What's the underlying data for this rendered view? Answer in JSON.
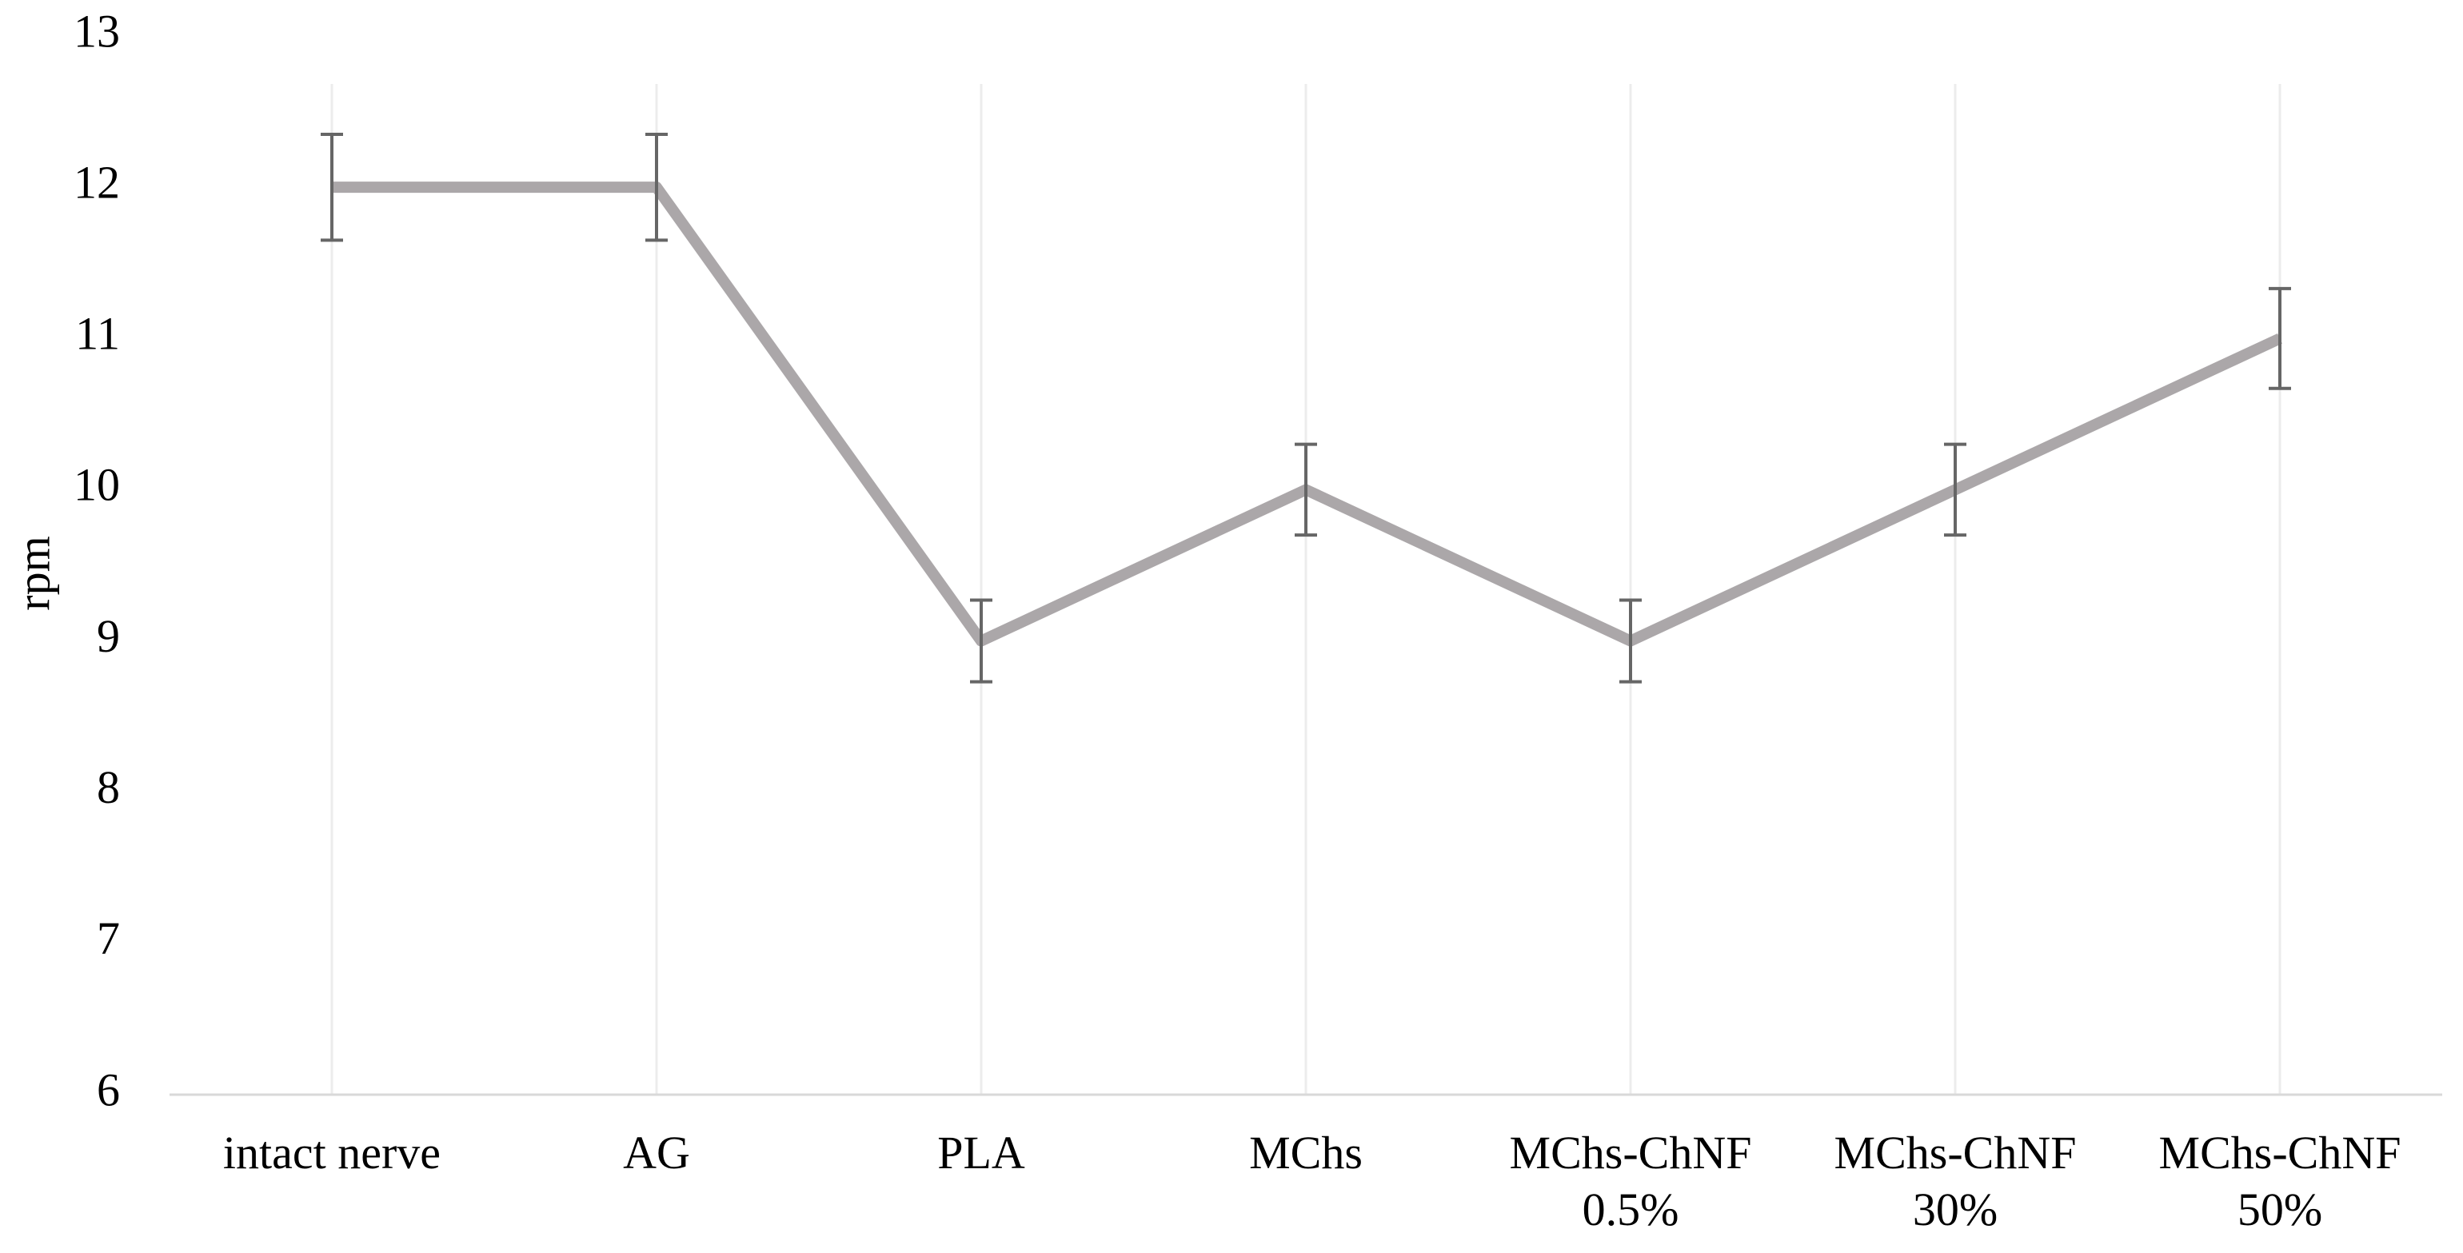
{
  "chart_data": {
    "type": "line",
    "ylabel": "rpm",
    "categories": [
      "intact nerve",
      "AG",
      "PLA",
      "MChs",
      "MChs-ChNF\n0.5%",
      "MChs-ChNF\n30%",
      "MChs-ChNF\n50%"
    ],
    "values": [
      12,
      12,
      9,
      10,
      9,
      10,
      11
    ],
    "errors": [
      0.35,
      0.35,
      0.27,
      0.3,
      0.27,
      0.3,
      0.33
    ],
    "color": "#aba7a9",
    "error_color": "#666666",
    "ylim": [
      6,
      13
    ],
    "yticks": [
      6,
      7,
      8,
      9,
      10,
      11,
      12,
      13
    ],
    "grid": "x"
  }
}
